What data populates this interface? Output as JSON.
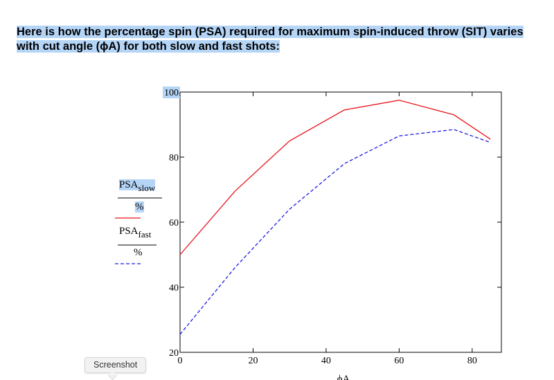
{
  "heading": {
    "line1": "Here is how the percentage spin (PSA) required for maximum spin-induced throw (SIT) varies",
    "line2": "with cut angle (ϕA) for both slow and fast shots:"
  },
  "legend": {
    "slow": {
      "main": "PSA",
      "sub": "slow",
      "denominator": "%"
    },
    "fast": {
      "main": "PSA",
      "sub": "fast",
      "denominator": "%"
    }
  },
  "tooltip": {
    "label": "Screenshot"
  },
  "colors": {
    "slow": "#e8141c",
    "fast": "#1a1ae6",
    "highlight": "#b5d5f7"
  },
  "chart_data": {
    "type": "line",
    "title": "",
    "xlabel": "ϕA",
    "ylabel": "",
    "xlim": [
      0,
      88
    ],
    "ylim": [
      20,
      100
    ],
    "xticks": [
      0,
      20,
      40,
      60,
      80
    ],
    "yticks": [
      20,
      40,
      60,
      80,
      100
    ],
    "xtick_labels": [
      "0",
      "20",
      "40",
      "60",
      "80"
    ],
    "ytick_labels": [
      "20",
      "40",
      "60",
      "80",
      "100"
    ],
    "grid": false,
    "series": [
      {
        "name": "PSA_slow / %",
        "style": "solid",
        "x": [
          0,
          15,
          30,
          45,
          60,
          75,
          85
        ],
        "y": [
          50,
          69.5,
          85,
          94.5,
          97.5,
          93,
          85.5
        ]
      },
      {
        "name": "PSA_fast / %",
        "style": "dashed",
        "x": [
          0,
          15,
          30,
          45,
          60,
          75,
          85
        ],
        "y": [
          25.5,
          46,
          64,
          78,
          86.5,
          88.5,
          84.5
        ]
      }
    ]
  }
}
